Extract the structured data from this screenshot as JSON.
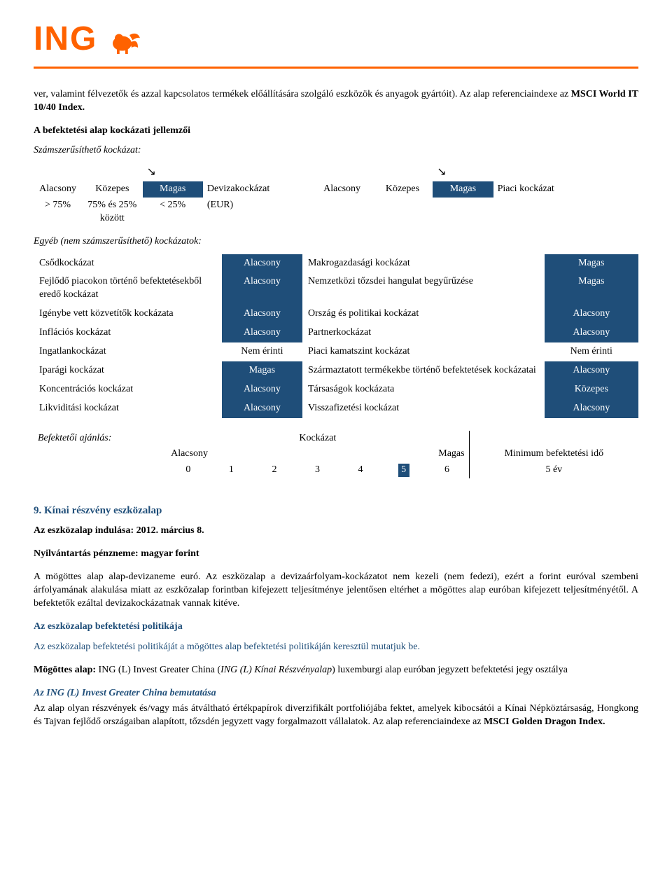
{
  "brand": {
    "logo_text": "ING",
    "logo_color": "#ff6200",
    "underline_color": "#ff6200"
  },
  "intro_paragraph": {
    "part1": "ver, valamint félvezetők és azzal kapcsolatos termékek előállítására szolgáló eszközök és anyagok gyártóit). Az alap referenciaindexe az ",
    "bold": "MSCI World IT 10/40 Index.",
    "part2": ""
  },
  "risk_section_title": "A befektetési alap kockázati jellemzői",
  "quantifiable_title": "Számszerűsíthető kockázat:",
  "arrow_symbol": "↘",
  "quant_table": {
    "headers": {
      "low": "Alacsony",
      "mid": "Közepes",
      "high": "Magas",
      "fx_label": "Devizakockázat",
      "fx_ccy": "(EUR)",
      "market_label": "Piaci kockázat"
    },
    "rows": {
      "low_val": "> 75%",
      "mid_val": "75% és 25% között",
      "high_val": "< 25%"
    },
    "left_highlight": "high",
    "right_highlight": "high",
    "colors": {
      "highlight_bg": "#1f4e79",
      "highlight_fg": "#ffffff"
    }
  },
  "other_risks_title": "Egyéb (nem számszerűsíthető) kockázatok:",
  "risk_grid": {
    "highlight_bg": "#1f4e79",
    "highlight_fg": "#ffffff",
    "rows": [
      {
        "l": "Csődkockázat",
        "lv": "Alacsony",
        "lh": true,
        "r": "Makrogazdasági kockázat",
        "rv": "Magas",
        "rh": true
      },
      {
        "l": "Fejlődő piacokon történő befektetésekből eredő kockázat",
        "lv": "Alacsony",
        "lh": true,
        "r": "Nemzetközi tőzsdei hangulat begyűrűzése",
        "rv": "Magas",
        "rh": true
      },
      {
        "l": "Igénybe vett közvetítők kockázata",
        "lv": "Alacsony",
        "lh": true,
        "r": "Ország és politikai kockázat",
        "rv": "Alacsony",
        "rh": true
      },
      {
        "l": "Inflációs kockázat",
        "lv": "Alacsony",
        "lh": true,
        "r": "Partnerkockázat",
        "rv": "Alacsony",
        "rh": true
      },
      {
        "l": "Ingatlankockázat",
        "lv": "Nem érinti",
        "lh": false,
        "r": "Piaci kamatszint kockázat",
        "rv": "Nem érinti",
        "rh": false
      },
      {
        "l": "Iparági kockázat",
        "lv": "Magas",
        "lh": true,
        "r": "Származtatott termékekbe történő befektetések kockázatai",
        "rv": "Alacsony",
        "rh": true
      },
      {
        "l": "Koncentrációs kockázat",
        "lv": "Alacsony",
        "lh": true,
        "r": "Társaságok kockázata",
        "rv": "Közepes",
        "rh": true
      },
      {
        "l": "Likviditási kockázat",
        "lv": "Alacsony",
        "lh": true,
        "r": "Visszafizetési kockázat",
        "rv": "Alacsony",
        "rh": true
      }
    ]
  },
  "recommendation": {
    "label": "Befektetői ajánlás:",
    "risk_label": "Kockázat",
    "low": "Alacsony",
    "high": "Magas",
    "min_time_label": "Minimum befektetési idő",
    "scale": [
      "0",
      "1",
      "2",
      "3",
      "4",
      "5",
      "6"
    ],
    "selected_index": 5,
    "min_time_value": "5 év",
    "selected_bg": "#1f4e79",
    "selected_fg": "#ffffff"
  },
  "section9": {
    "heading": "9. Kínai részvény eszközalap",
    "heading_color": "#1f4e79",
    "start": "Az eszközalap indulása: 2012. március 8.",
    "ccy": "Nyilvántartás pénzneme: magyar forint",
    "para1": "A mögöttes alap alap-devizaneme euró. Az eszközalap a devizaárfolyam-kockázatot nem kezeli (nem fedezi), ezért a forint euróval szembeni árfolyamának alakulása miatt az eszközalap forintban kifejezett teljesítménye jelentősen eltérhet a mögöttes alap euróban kifejezett teljesítményétől. A befektetők ezáltal devizakockázatnak vannak kitéve.",
    "policy_heading": "Az eszközalap befektetési politikája",
    "policy_line": "Az eszközalap befektetési politikáját a mögöttes alap befektetési politikáján keresztül mutatjuk be.",
    "underlying_label": "Mögöttes alap: ",
    "underlying_name_plain": "ING (L) Invest Greater China (",
    "underlying_name_italic": "ING (L) Kínai Részvényalap",
    "underlying_tail": ") luxemburgi alap euróban jegyzett befektetési jegy osztálya",
    "sub_heading": "Az ING (L) Invest Greater China bemutatása",
    "para2_pre": "Az alap olyan részvények és/vagy más átváltható értékpapírok diverzifikált portfoliójába fektet, amelyek kibocsátói a Kínai Népköztársaság, Hongkong és Tajvan fejlődő országaiban alapított, tőzsdén jegyzett vagy forgalmazott vállalatok. Az alap referenciaindexe az ",
    "para2_bold": "MSCI Golden Dragon Index."
  }
}
